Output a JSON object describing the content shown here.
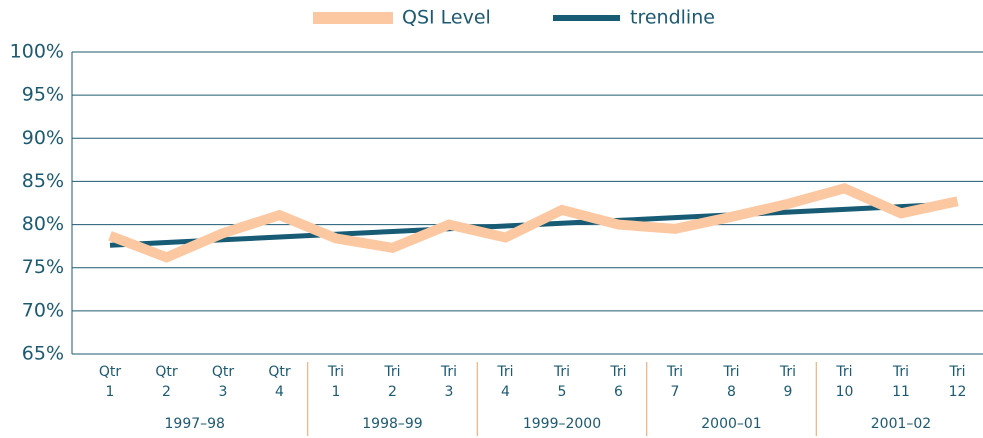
{
  "chart_data": {
    "type": "line",
    "categories": [
      [
        "Qtr",
        "1"
      ],
      [
        "Qtr",
        "2"
      ],
      [
        "Qtr",
        "3"
      ],
      [
        "Qtr",
        "4"
      ],
      [
        "Tri",
        "1"
      ],
      [
        "Tri",
        "2"
      ],
      [
        "Tri",
        "3"
      ],
      [
        "Tri",
        "4"
      ],
      [
        "Tri",
        "5"
      ],
      [
        "Tri",
        "6"
      ],
      [
        "Tri",
        "7"
      ],
      [
        "Tri",
        "8"
      ],
      [
        "Tri",
        "9"
      ],
      [
        "Tri",
        "10"
      ],
      [
        "Tri",
        "11"
      ],
      [
        "Tri",
        "12"
      ]
    ],
    "groups": [
      "1997–98",
      "1998–99",
      "1999–2000",
      "2000–01",
      "2001–02"
    ],
    "series": [
      {
        "name": "QSI Level",
        "color": "#fcc8a2",
        "values": [
          78.7,
          76.2,
          79.0,
          81.1,
          78.4,
          77.3,
          80.0,
          78.5,
          81.7,
          80.0,
          79.5,
          80.9,
          82.4,
          84.2,
          81.3,
          82.7
        ]
      },
      {
        "name": "trendline",
        "color": "#175b74",
        "values": [
          77.6,
          77.92,
          78.24,
          78.56,
          78.88,
          79.2,
          79.52,
          79.84,
          80.16,
          80.48,
          80.8,
          81.12,
          81.44,
          81.76,
          82.08,
          82.4
        ]
      }
    ],
    "ylim": [
      65,
      100
    ],
    "yticks": [
      {
        "value": 65,
        "label": "65%"
      },
      {
        "value": 70,
        "label": "70%"
      },
      {
        "value": 75,
        "label": "75%"
      },
      {
        "value": 80,
        "label": "80%"
      },
      {
        "value": 85,
        "label": "85%"
      },
      {
        "value": 90,
        "label": "90%"
      },
      {
        "value": 95,
        "label": "95%"
      },
      {
        "value": 100,
        "label": "100%"
      }
    ],
    "grid": true,
    "legend": "top"
  }
}
